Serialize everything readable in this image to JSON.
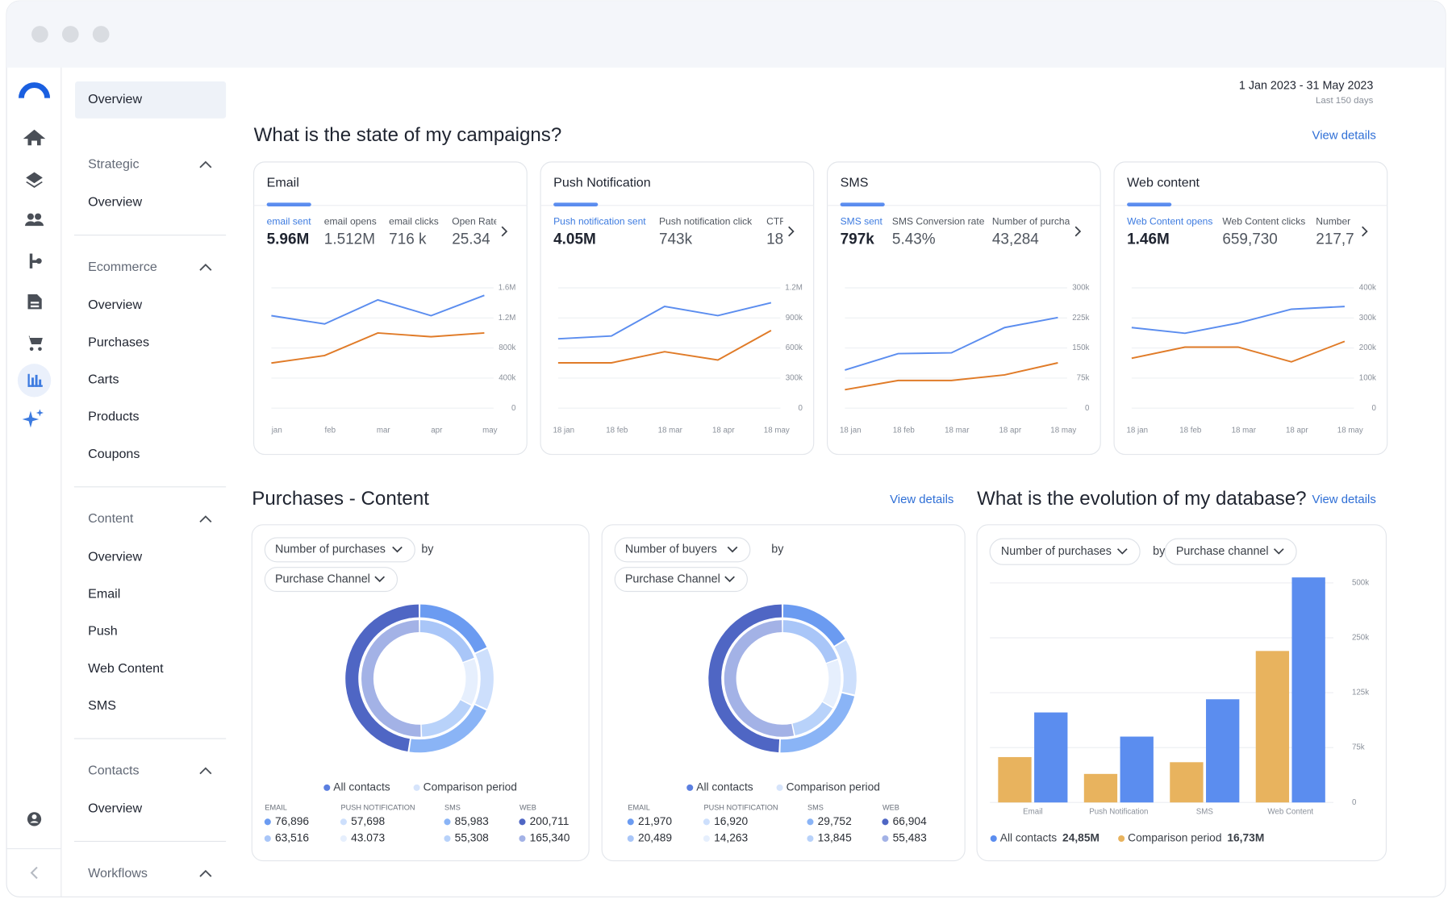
{
  "nav": {
    "active": "Overview",
    "sections": [
      {
        "title": "Strategic",
        "items": [
          "Overview"
        ]
      },
      {
        "title": "Ecommerce",
        "items": [
          "Overview",
          "Purchases",
          "Carts",
          "Products",
          "Coupons"
        ]
      },
      {
        "title": "Content",
        "items": [
          "Overview",
          "Email",
          "Push",
          "Web Content",
          "SMS"
        ]
      },
      {
        "title": "Contacts",
        "items": [
          "Overview"
        ]
      },
      {
        "title": "Workflows",
        "items": []
      }
    ]
  },
  "header": {
    "date_range": "1 Jan 2023 - 31 May 2023",
    "period": "Last 150 days"
  },
  "campaigns": {
    "title": "What is the state of my campaigns?",
    "link": "View details",
    "cards": [
      {
        "title": "Email",
        "metrics": [
          {
            "label": "email sent",
            "value": "5.96M"
          },
          {
            "label": "email opens",
            "value": "1.512M"
          },
          {
            "label": "email clicks",
            "value": "716 k"
          },
          {
            "label": "Open Rate",
            "value": "25.34"
          }
        ],
        "chart": {
          "type": "line",
          "x": [
            "jan",
            "feb",
            "mar",
            "apr",
            "may"
          ],
          "series": [
            {
              "color": "#5b8def",
              "values": [
                1230000,
                1120000,
                1440000,
                1230000,
                1500000
              ]
            },
            {
              "color": "#e07b28",
              "values": [
                600000,
                700000,
                1000000,
                950000,
                1000000
              ]
            }
          ],
          "ylim": [
            0,
            1600000
          ],
          "yticks": [
            0,
            {
              "value": 400000,
              "label": "400k"
            },
            {
              "value": 800000,
              "label": "800k"
            },
            {
              "value": 1200000,
              "label": "1.2M"
            },
            {
              "value": 1600000,
              "label": "1.6M"
            }
          ],
          "grid": true
        }
      },
      {
        "title": "Push Notification",
        "metrics": [
          {
            "label": "Push notification sent",
            "value": "4.05M"
          },
          {
            "label": "Push notification click",
            "value": "743k"
          },
          {
            "label": "CTR",
            "value": "18"
          }
        ],
        "chart": {
          "type": "line",
          "x": [
            "18 jan",
            "18 feb",
            "18 mar",
            "18 apr",
            "18 may"
          ],
          "series": [
            {
              "color": "#5b8def",
              "values": [
                692000,
                720000,
                1015000,
                923000,
                1052000
              ]
            },
            {
              "color": "#e07b28",
              "values": [
                452000,
                452000,
                563000,
                480000,
                775000
              ]
            }
          ],
          "ylim": [
            0,
            1200000
          ],
          "yticks": [
            0,
            {
              "value": 300000,
              "label": "300k"
            },
            {
              "value": 600000,
              "label": "600k"
            },
            {
              "value": 900000,
              "label": "900k"
            },
            {
              "value": 1200000,
              "label": "1.2M"
            }
          ],
          "grid": true
        }
      },
      {
        "title": "SMS",
        "metrics": [
          {
            "label": "SMS sent",
            "value": "797k"
          },
          {
            "label": "SMS Conversion rate",
            "value": "5.43%"
          },
          {
            "label": "Number of purchases",
            "value": "43,284"
          }
        ],
        "chart": {
          "type": "line",
          "x": [
            "18 jan",
            "18 feb",
            "18 mar",
            "18 apr",
            "18 may"
          ],
          "series": [
            {
              "color": "#5b8def",
              "values": [
                95000,
                136000,
                138000,
                201000,
                226000
              ]
            },
            {
              "color": "#e07b28",
              "values": [
                46000,
                69000,
                69000,
                83000,
                113000
              ]
            }
          ],
          "ylim": [
            0,
            300000
          ],
          "yticks": [
            0,
            {
              "value": 75000,
              "label": "75k"
            },
            {
              "value": 150000,
              "label": "150k"
            },
            {
              "value": 225000,
              "label": "225k"
            },
            {
              "value": 300000,
              "label": "300k"
            }
          ],
          "grid": true
        }
      },
      {
        "title": "Web content",
        "metrics": [
          {
            "label": "Web Content opens",
            "value": "1.46M"
          },
          {
            "label": "Web Content clicks",
            "value": "659,730"
          },
          {
            "label": "Number",
            "value": "217,7"
          }
        ],
        "chart": {
          "type": "line",
          "x": [
            "18 jan",
            "18 feb",
            "18 mar",
            "18 apr",
            "18 may"
          ],
          "series": [
            {
              "color": "#5b8def",
              "values": [
                268000,
                249000,
                283000,
                329000,
                338000
              ]
            },
            {
              "color": "#e07b28",
              "values": [
                166000,
                203000,
                203000,
                154000,
                222000
              ]
            }
          ],
          "ylim": [
            0,
            400000
          ],
          "yticks": [
            0,
            {
              "value": 100000,
              "label": "100k"
            },
            {
              "value": 200000,
              "label": "200k"
            },
            {
              "value": 300000,
              "label": "300k"
            },
            {
              "value": 400000,
              "label": "400k"
            }
          ],
          "grid": true
        }
      }
    ]
  },
  "purchases": {
    "title": "Purchases - Content",
    "link": "View details",
    "panels": [
      {
        "filters": [
          "Number of purchases",
          "Purchase Channel"
        ],
        "by": "by",
        "chart": {
          "type": "donut",
          "categories": [
            "EMAIL",
            "PUSH NOTIFICATION",
            "SMS",
            "WEB"
          ],
          "series": [
            {
              "name": "All contacts",
              "color": "#5b7fe0",
              "colors": [
                "#6b9bf1",
                "#cddffc",
                "#8ab4f6",
                "#4f66c4"
              ],
              "values": [
                76896,
                57698,
                85983,
                200711
              ],
              "value_labels": [
                "76,896",
                "57,698",
                "85,983",
                "200,711"
              ]
            },
            {
              "name": "Comparison period",
              "color": "#d6e4fb",
              "colors": [
                "#a9c6f8",
                "#e6effd",
                "#b8d2fa",
                "#a3b2e6"
              ],
              "values": [
                63516,
                43073,
                55308,
                165340
              ],
              "value_labels": [
                "63,516",
                "43.073",
                "55,308",
                "165,340"
              ]
            }
          ]
        }
      },
      {
        "filters": [
          "Number of  buyers",
          "Purchase Channel"
        ],
        "by": "by",
        "chart": {
          "type": "donut",
          "categories": [
            "EMAIL",
            "PUSH NOTIFICATION",
            "SMS",
            "WEB"
          ],
          "series": [
            {
              "name": "All contacts",
              "color": "#5b7fe0",
              "colors": [
                "#6b9bf1",
                "#cddffc",
                "#8ab4f6",
                "#4f66c4"
              ],
              "values": [
                21970,
                16920,
                29752,
                66904
              ],
              "value_labels": [
                "21,970",
                "16,920",
                "29,752",
                "66,904"
              ]
            },
            {
              "name": "Comparison period",
              "color": "#d6e4fb",
              "colors": [
                "#a9c6f8",
                "#e6effd",
                "#b8d2fa",
                "#a3b2e6"
              ],
              "values": [
                20489,
                14263,
                13845,
                55483
              ],
              "value_labels": [
                "20,489",
                "14,263",
                "13,845",
                "55,483"
              ]
            }
          ]
        }
      }
    ]
  },
  "database": {
    "title": "What is the evolution of my database?",
    "link": "View details",
    "filters": [
      "Number of purchases",
      "Purchase channel"
    ],
    "by": "by",
    "chart": {
      "type": "bar",
      "categories": [
        "Email",
        "Push Notification",
        "SMS",
        "Web Content"
      ],
      "series": [
        {
          "name": "All contacts",
          "color": "#5b8def",
          "total": "24,85M",
          "values": [
            107000,
            85000,
            119000,
            525000
          ]
        },
        {
          "name": "Comparison period",
          "color": "#e8b35e",
          "total": "16,73M",
          "values": [
            62000,
            39000,
            55000,
            220000
          ]
        }
      ],
      "ylim": [
        0,
        525000
      ],
      "yticks": [
        0,
        {
          "value": 75000,
          "label": "75k"
        },
        {
          "value": 125000,
          "label": "125k"
        },
        {
          "value": 250000,
          "label": "250k"
        },
        {
          "value": 500000,
          "label": "500k"
        }
      ],
      "grid": true
    }
  }
}
